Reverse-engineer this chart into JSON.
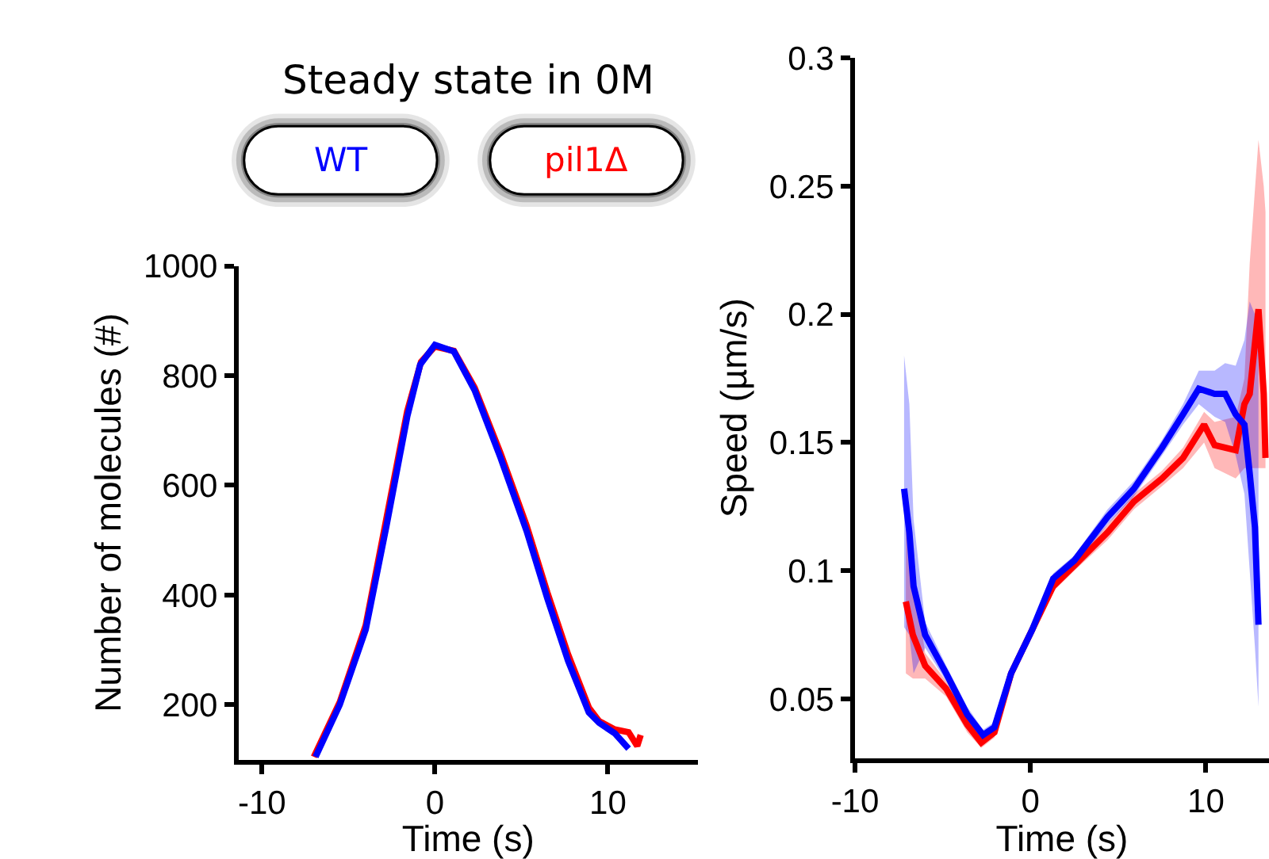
{
  "chart_data": [
    {
      "type": "line",
      "title": "Steady state in 0M",
      "xlabel": "Time (s)",
      "ylabel": "Number of molecules (#)",
      "xlim": [
        -11.35,
        15.2
      ],
      "ylim": [
        100,
        1000
      ],
      "xticks": [
        -10,
        0,
        10
      ],
      "yticks": [
        200,
        400,
        600,
        800,
        1000
      ],
      "legend": "top",
      "series": [
        {
          "name": "pil1Δ",
          "color": "#ff0000",
          "x": [
            -7,
            -5.5,
            -4,
            -2.8,
            -1.6,
            -0.8,
            0,
            1.1,
            2.3,
            3.8,
            5.3,
            6.5,
            7.7,
            8.9,
            9.5,
            10.4,
            11.2,
            11.7,
            11.9
          ],
          "values": [
            105,
            205,
            345,
            540,
            735,
            825,
            853,
            845,
            778,
            658,
            527,
            405,
            292,
            195,
            170,
            155,
            150,
            125,
            145
          ]
        },
        {
          "name": "WT",
          "color": "#0000ff",
          "x": [
            -6.9,
            -5.5,
            -4,
            -2.8,
            -1.6,
            -0.85,
            0,
            1.1,
            2.3,
            3.8,
            5.3,
            6.5,
            7.7,
            8.9,
            9.5,
            10.4,
            11.2
          ],
          "values": [
            105,
            200,
            337,
            526,
            725,
            820,
            856,
            844,
            773,
            650,
            517,
            394,
            280,
            186,
            167,
            148,
            120
          ]
        }
      ]
    },
    {
      "type": "line",
      "xlabel": "Time (s)",
      "ylabel": "Speed (µm/s)",
      "xlim": [
        -10,
        13.6
      ],
      "ylim": [
        0.027,
        0.3
      ],
      "xticks": [
        -10,
        0,
        10
      ],
      "yticks": [
        0.05,
        0.1,
        0.15,
        0.2,
        0.25,
        0.3
      ],
      "series": [
        {
          "color": "#ff0000",
          "x": [
            -7.1,
            -6.7,
            -6.0,
            -4.8,
            -3.6,
            -2.8,
            -2.05,
            -1.1,
            0.1,
            1.3,
            2.5,
            4.4,
            5.9,
            7.5,
            8.7,
            9.9,
            10.5,
            11.7,
            12.2,
            12.5,
            13.0,
            13.3,
            13.4
          ],
          "values": [
            0.088,
            0.075,
            0.063,
            0.054,
            0.04,
            0.033,
            0.037,
            0.06,
            0.077,
            0.094,
            0.102,
            0.115,
            0.127,
            0.136,
            0.144,
            0.157,
            0.149,
            0.147,
            0.165,
            0.169,
            0.202,
            0.169,
            0.144
          ],
          "lower": [
            0.06,
            0.058,
            0.058,
            0.051,
            0.037,
            0.031,
            0.035,
            0.058,
            0.075,
            0.092,
            0.1,
            0.112,
            0.124,
            0.133,
            0.14,
            0.15,
            0.14,
            0.136,
            0.14,
            0.14,
            0.14,
            0.14,
            0.14
          ],
          "upper": [
            0.118,
            0.1,
            0.068,
            0.057,
            0.043,
            0.035,
            0.039,
            0.062,
            0.079,
            0.096,
            0.104,
            0.118,
            0.13,
            0.139,
            0.148,
            0.162,
            0.158,
            0.16,
            0.175,
            0.22,
            0.268,
            0.25,
            0.24
          ]
        },
        {
          "color": "#0000ff",
          "x": [
            -7.2,
            -6.9,
            -6.66,
            -6.0,
            -4.8,
            -3.6,
            -2.7,
            -2.05,
            -1.1,
            0.1,
            1.3,
            2.5,
            4.4,
            5.9,
            7.5,
            8.7,
            9.6,
            10.5,
            11.1,
            11.7,
            12.2,
            12.5,
            12.8,
            13.0
          ],
          "values": [
            0.132,
            0.115,
            0.094,
            0.075,
            0.06,
            0.044,
            0.036,
            0.039,
            0.06,
            0.077,
            0.097,
            0.104,
            0.121,
            0.132,
            0.148,
            0.161,
            0.171,
            0.169,
            0.169,
            0.161,
            0.157,
            0.138,
            0.117,
            0.079
          ],
          "lower": [
            0.078,
            0.075,
            0.06,
            0.07,
            0.057,
            0.041,
            0.034,
            0.037,
            0.058,
            0.075,
            0.095,
            0.102,
            0.118,
            0.129,
            0.145,
            0.157,
            0.165,
            0.16,
            0.158,
            0.145,
            0.13,
            0.1,
            0.07,
            0.047
          ],
          "upper": [
            0.184,
            0.165,
            0.12,
            0.08,
            0.063,
            0.047,
            0.038,
            0.041,
            0.062,
            0.079,
            0.099,
            0.106,
            0.124,
            0.135,
            0.151,
            0.165,
            0.178,
            0.178,
            0.181,
            0.18,
            0.19,
            0.205,
            0.2,
            0.19
          ]
        }
      ]
    }
  ]
}
